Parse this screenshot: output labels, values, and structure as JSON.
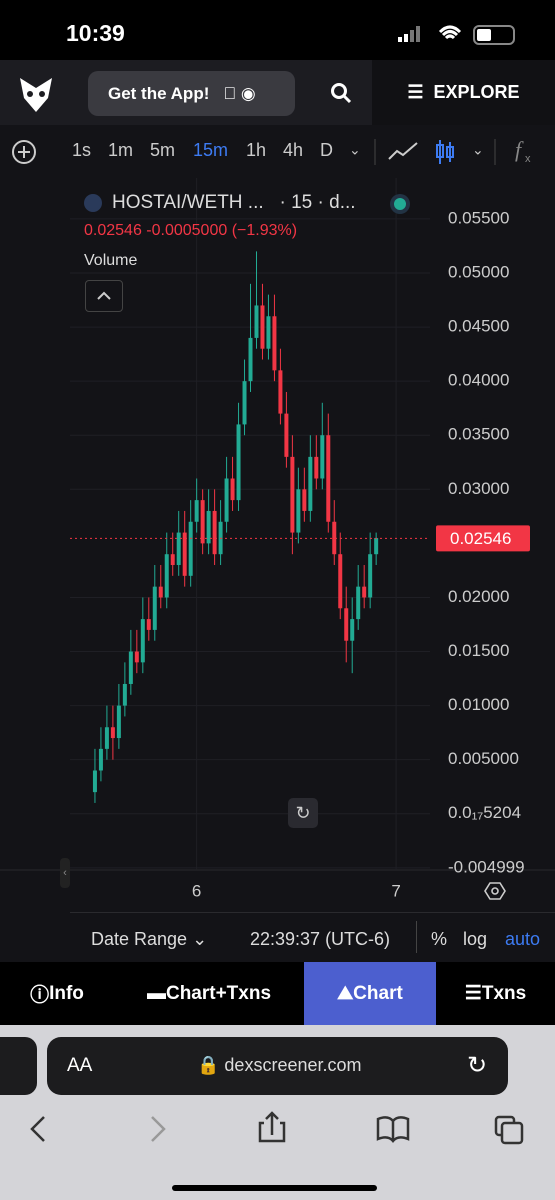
{
  "status_bar": {
    "time": "10:39"
  },
  "header": {
    "app_button": "Get the App!",
    "explore": "EXPLORE"
  },
  "toolbar": {
    "intervals": [
      "1s",
      "1m",
      "5m",
      "15m",
      "1h",
      "4h",
      "D"
    ],
    "active_interval": 3
  },
  "pair": {
    "symbol": "HOSTAI/WETH ...",
    "interval_source": "· 15 · d...",
    "price_change": "0.02546 -0.0005000 (−1.93%)",
    "study": "Volume"
  },
  "chart_data": {
    "type": "candlestick",
    "x": [
      5.49,
      5.52,
      5.55,
      5.58,
      5.61,
      5.64,
      5.67,
      5.7,
      5.73,
      5.76,
      5.79,
      5.82,
      5.85,
      5.88,
      5.91,
      5.94,
      5.97,
      6.0,
      6.03,
      6.06,
      6.09,
      6.12,
      6.15,
      6.18,
      6.21,
      6.24,
      6.27,
      6.3,
      6.33,
      6.36,
      6.39,
      6.42,
      6.45,
      6.48,
      6.51,
      6.54,
      6.57,
      6.6,
      6.63,
      6.66,
      6.69,
      6.72,
      6.75,
      6.78,
      6.81,
      6.84,
      6.87,
      6.9
    ],
    "open": [
      0.002,
      0.004,
      0.006,
      0.008,
      0.007,
      0.01,
      0.012,
      0.015,
      0.014,
      0.018,
      0.017,
      0.021,
      0.02,
      0.024,
      0.023,
      0.026,
      0.022,
      0.027,
      0.029,
      0.025,
      0.028,
      0.024,
      0.027,
      0.031,
      0.029,
      0.036,
      0.04,
      0.044,
      0.047,
      0.043,
      0.046,
      0.041,
      0.037,
      0.033,
      0.026,
      0.03,
      0.028,
      0.033,
      0.031,
      0.035,
      0.027,
      0.024,
      0.019,
      0.016,
      0.018,
      0.021,
      0.02,
      0.024
    ],
    "high": [
      0.006,
      0.008,
      0.01,
      0.01,
      0.012,
      0.014,
      0.017,
      0.017,
      0.02,
      0.02,
      0.023,
      0.023,
      0.026,
      0.026,
      0.028,
      0.028,
      0.029,
      0.031,
      0.03,
      0.03,
      0.03,
      0.029,
      0.033,
      0.033,
      0.038,
      0.042,
      0.049,
      0.052,
      0.049,
      0.048,
      0.048,
      0.043,
      0.039,
      0.035,
      0.032,
      0.032,
      0.035,
      0.035,
      0.038,
      0.037,
      0.029,
      0.026,
      0.021,
      0.02,
      0.023,
      0.023,
      0.026,
      0.026
    ],
    "low": [
      0.001,
      0.003,
      0.005,
      0.005,
      0.006,
      0.009,
      0.011,
      0.013,
      0.013,
      0.016,
      0.016,
      0.019,
      0.019,
      0.022,
      0.022,
      0.021,
      0.021,
      0.026,
      0.024,
      0.024,
      0.023,
      0.023,
      0.026,
      0.028,
      0.028,
      0.035,
      0.039,
      0.043,
      0.042,
      0.042,
      0.04,
      0.036,
      0.032,
      0.024,
      0.025,
      0.027,
      0.027,
      0.03,
      0.03,
      0.026,
      0.023,
      0.018,
      0.014,
      0.013,
      0.017,
      0.019,
      0.019,
      0.023
    ],
    "close": [
      0.004,
      0.006,
      0.008,
      0.007,
      0.01,
      0.012,
      0.015,
      0.014,
      0.018,
      0.017,
      0.021,
      0.02,
      0.024,
      0.023,
      0.026,
      0.022,
      0.027,
      0.029,
      0.025,
      0.028,
      0.024,
      0.027,
      0.031,
      0.029,
      0.036,
      0.04,
      0.044,
      0.047,
      0.043,
      0.046,
      0.041,
      0.037,
      0.033,
      0.026,
      0.03,
      0.028,
      0.033,
      0.031,
      0.035,
      0.027,
      0.024,
      0.019,
      0.016,
      0.018,
      0.021,
      0.02,
      0.024,
      0.0255
    ],
    "up_color": "#22ab94",
    "down_color": "#f23645",
    "xlim": [
      5.39,
      7.17
    ],
    "xticks": [
      6,
      7
    ],
    "ylim": [
      -0.0052,
      0.0586
    ],
    "yticks": [
      {
        "value": 0.055,
        "label": "0.05500"
      },
      {
        "value": 0.05,
        "label": "0.05000"
      },
      {
        "value": 0.045,
        "label": "0.04500"
      },
      {
        "value": 0.04,
        "label": "0.04000"
      },
      {
        "value": 0.035,
        "label": "0.03500"
      },
      {
        "value": 0.03,
        "label": "0.03000"
      },
      {
        "value": 0.02,
        "label": "0.02000"
      },
      {
        "value": 0.015,
        "label": "0.01500"
      },
      {
        "value": 0.01,
        "label": "0.01000"
      },
      {
        "value": 0.005,
        "label": "0.005000"
      },
      {
        "value": 5.204e-18,
        "label": "0.0₁₇5204"
      },
      -0.004999
    ],
    "last_price": 0.02546,
    "grid": true
  },
  "footer": {
    "date_range": "Date Range",
    "time": "22:39:37 (UTC-6)",
    "percent": "%",
    "log": "log",
    "auto": "auto"
  },
  "tabs": {
    "items": [
      "Info",
      "Chart+Txns",
      "Chart",
      "Txns"
    ],
    "active": 2
  },
  "browser": {
    "text_size": "AA",
    "url": "dexscreener.com"
  }
}
